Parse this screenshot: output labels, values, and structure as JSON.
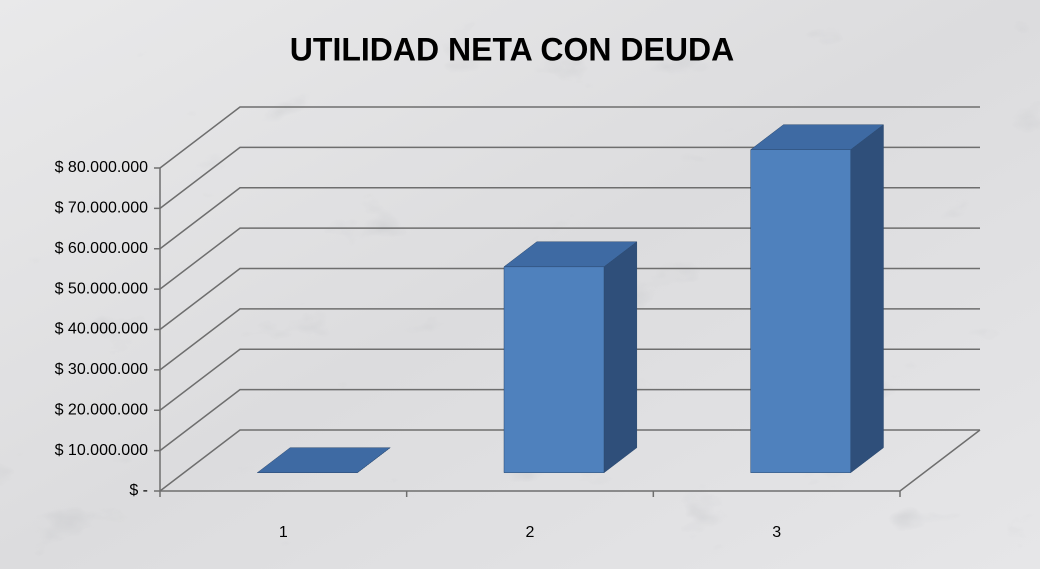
{
  "chart_data": {
    "type": "bar3d",
    "title": "UTILIDAD NETA CON DEUDA",
    "categories": [
      "1",
      "2",
      "3"
    ],
    "values": [
      0,
      51000000,
      80000000
    ],
    "color": "#4f81bd",
    "ylim": [
      0,
      80000000
    ],
    "yticks": [
      {
        "value": 0,
        "label": "$ -"
      },
      {
        "value": 10000000,
        "label": "$ 10.000.000"
      },
      {
        "value": 20000000,
        "label": "$ 20.000.000"
      },
      {
        "value": 30000000,
        "label": "$ 30.000.000"
      },
      {
        "value": 40000000,
        "label": "$ 40.000.000"
      },
      {
        "value": 50000000,
        "label": "$ 50.000.000"
      },
      {
        "value": 60000000,
        "label": "$ 60.000.000"
      },
      {
        "value": 70000000,
        "label": "$ 70.000.000"
      },
      {
        "value": 80000000,
        "label": "$ 80.000.000"
      }
    ],
    "grid": true
  }
}
